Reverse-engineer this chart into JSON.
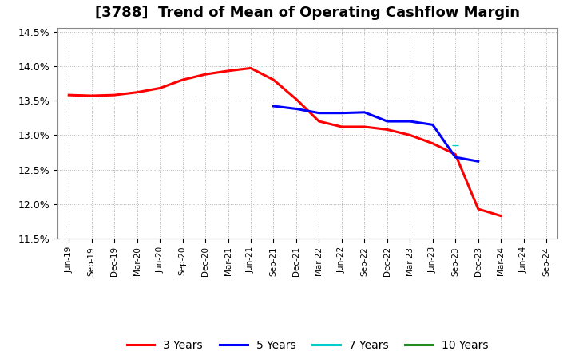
{
  "title": "[3788]  Trend of Mean of Operating Cashflow Margin",
  "ylim": [
    0.115,
    0.1455
  ],
  "yticks": [
    0.115,
    0.12,
    0.125,
    0.13,
    0.135,
    0.14,
    0.145
  ],
  "ytick_labels": [
    "11.5%",
    "12.0%",
    "12.5%",
    "13.0%",
    "13.5%",
    "14.0%",
    "14.5%"
  ],
  "xtick_labels": [
    "Jun-19",
    "Sep-19",
    "Dec-19",
    "Mar-20",
    "Jun-20",
    "Sep-20",
    "Dec-20",
    "Mar-21",
    "Jun-21",
    "Sep-21",
    "Dec-21",
    "Mar-22",
    "Jun-22",
    "Sep-22",
    "Dec-22",
    "Mar-23",
    "Jun-23",
    "Sep-23",
    "Dec-23",
    "Mar-24",
    "Jun-24",
    "Sep-24"
  ],
  "series_3yr": {
    "label": "3 Years",
    "color": "#ff0000",
    "x": [
      0,
      1,
      2,
      3,
      4,
      5,
      6,
      7,
      8,
      9,
      10,
      11,
      12,
      13,
      14,
      15,
      16,
      17,
      18,
      19,
      20,
      21
    ],
    "y": [
      0.1358,
      0.1357,
      0.1358,
      0.1362,
      0.1368,
      0.138,
      0.1388,
      0.1393,
      0.1397,
      0.138,
      0.1352,
      0.132,
      0.1312,
      0.1312,
      0.1308,
      0.13,
      0.1288,
      0.1272,
      0.1193,
      0.1183,
      null,
      null
    ]
  },
  "series_5yr": {
    "label": "5 Years",
    "color": "#0000ff",
    "x": [
      9,
      10,
      11,
      12,
      13,
      14,
      15,
      16,
      17,
      18,
      19,
      20,
      21
    ],
    "y": [
      0.1342,
      0.1338,
      0.1332,
      0.1332,
      0.1333,
      0.132,
      0.132,
      0.1315,
      0.1268,
      0.1262,
      null,
      null,
      null
    ]
  },
  "series_7yr": {
    "label": "7 Years",
    "color": "#00cccc",
    "x": [
      17,
      18,
      19,
      20,
      21
    ],
    "y": [
      0.1285,
      null,
      null,
      null,
      null
    ]
  },
  "series_10yr": {
    "label": "10 Years",
    "color": "#228B22",
    "x": [],
    "y": []
  },
  "background_color": "#ffffff",
  "plot_bg_color": "#ffffff",
  "grid_color": "#aaaaaa",
  "title_fontsize": 13,
  "legend_fontsize": 10
}
